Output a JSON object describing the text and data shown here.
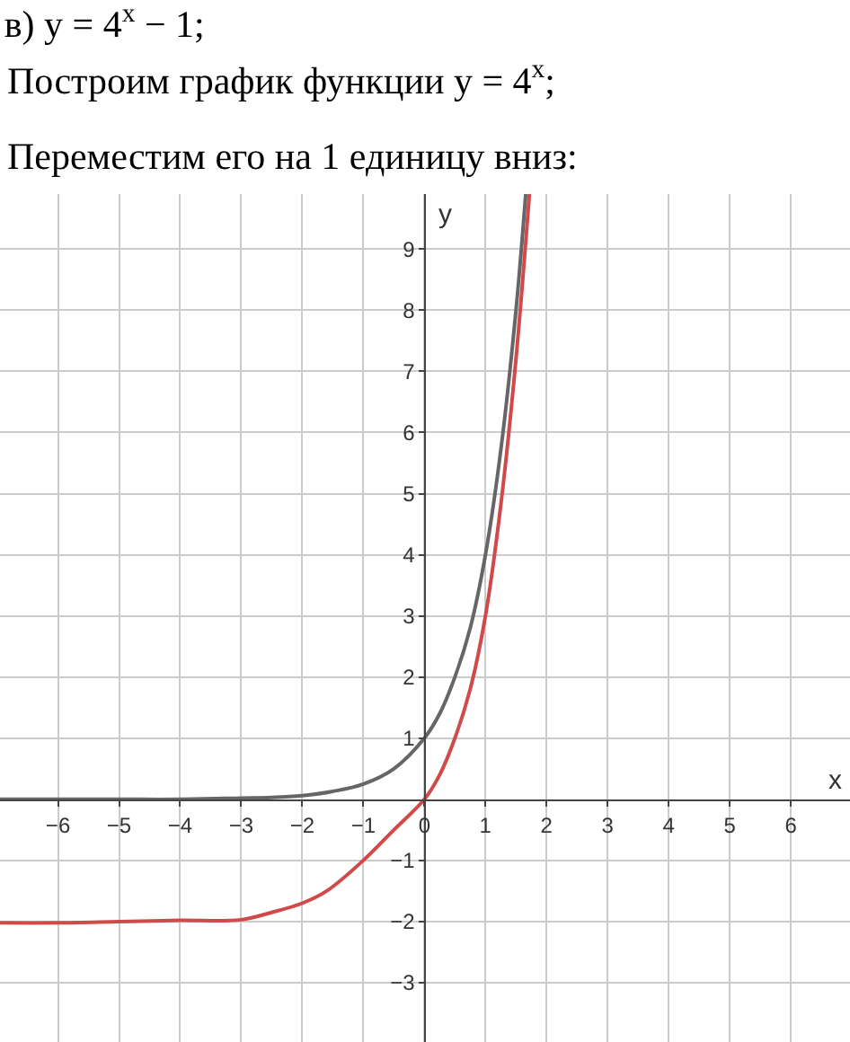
{
  "chart_data": {
    "type": "line",
    "title": "в) y = 4$^{x}$ − 1;",
    "subtitle": "Построим график функции y = 4$^{x}$;\nПереместим его на 1 единицу вниз:",
    "xlabel": "x",
    "ylabel": "y",
    "xlim": [
      -6.95,
      6.97
    ],
    "ylim": [
      -3.97,
      9.9
    ],
    "xticks": [
      -6,
      -5,
      -4,
      -3,
      -2,
      -1,
      0,
      1,
      2,
      3,
      4,
      5,
      6
    ],
    "yticks": [
      -3,
      -2,
      -1,
      1,
      2,
      3,
      4,
      5,
      6,
      7,
      8,
      9
    ],
    "grid": true,
    "marker": "none",
    "line_style": "solid",
    "series": [
      {
        "color": "#666666",
        "x": [
          -6.95,
          -6,
          -5,
          -4,
          -3,
          -2.5,
          -2,
          -1.5,
          -1,
          -0.5,
          0,
          0.25,
          0.5,
          0.75,
          1,
          1.25,
          1.5,
          1.66
        ],
        "values": [
          0,
          0,
          0,
          0,
          0.02,
          0.03,
          0.06,
          0.13,
          0.25,
          0.5,
          1,
          1.4,
          2,
          2.8,
          4,
          5.7,
          8,
          9.9
        ]
      },
      {
        "color": "#d04a4a",
        "x": [
          -6.95,
          -6,
          -5,
          -4,
          -3,
          -2.5,
          -2,
          -1.6,
          -1,
          -0.5,
          0,
          0.25,
          0.5,
          0.75,
          1,
          1.25,
          1.5,
          1.72
        ],
        "values": [
          -2.02,
          -2.02,
          -2,
          -1.98,
          -1.97,
          -1.85,
          -1.7,
          -1.5,
          -1,
          -0.5,
          0,
          0.4,
          1,
          1.8,
          3,
          4.8,
          7.2,
          9.9
        ]
      }
    ]
  }
}
